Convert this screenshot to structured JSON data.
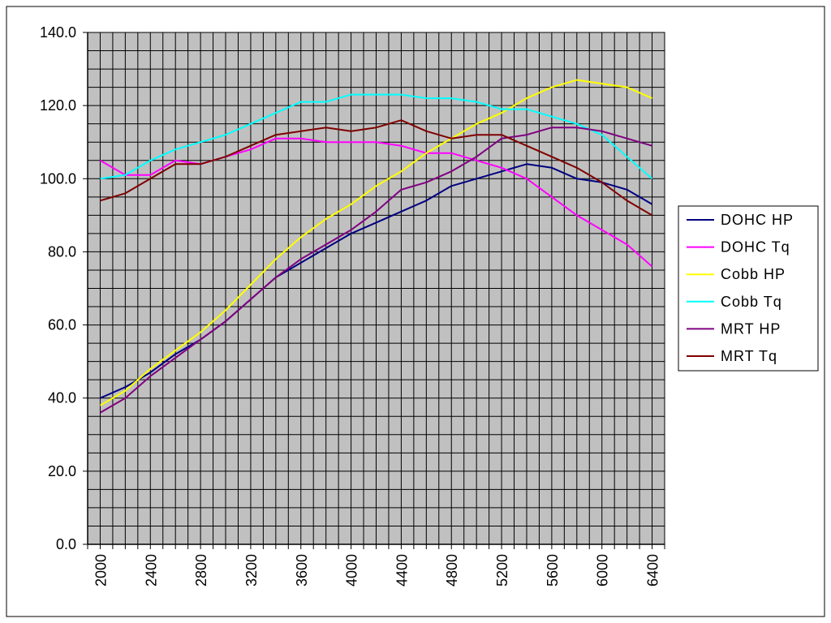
{
  "chart_data": {
    "type": "line",
    "title": "",
    "xlabel": "",
    "ylabel": "",
    "xlim": [
      1900,
      6500
    ],
    "ylim": [
      0,
      140
    ],
    "grid": true,
    "legend_position": "right",
    "plot_background": "#c0c0c0",
    "y_ticks": [
      "0.0",
      "20.0",
      "40.0",
      "60.0",
      "80.0",
      "100.0",
      "120.0",
      "140.0"
    ],
    "x_ticks": [
      "2000",
      "2400",
      "2800",
      "3200",
      "3600",
      "4000",
      "4400",
      "4800",
      "5200",
      "5600",
      "6000",
      "6400"
    ],
    "x": [
      2000,
      2200,
      2400,
      2600,
      2800,
      3000,
      3200,
      3400,
      3600,
      3800,
      4000,
      4200,
      4400,
      4600,
      4800,
      5000,
      5200,
      5400,
      5600,
      5800,
      6000,
      6200,
      6400
    ],
    "series": [
      {
        "name": "DOHC HP",
        "color": "#000080",
        "values": [
          40,
          43,
          47,
          52,
          56,
          61,
          67,
          73,
          77,
          81,
          85,
          88,
          91,
          94,
          98,
          100,
          102,
          104,
          103,
          100,
          99,
          97,
          93
        ]
      },
      {
        "name": "DOHC Tq",
        "color": "#ff00ff",
        "values": [
          105,
          101,
          101,
          105,
          104,
          106,
          108,
          111,
          111,
          110,
          110,
          110,
          109,
          107,
          107,
          105,
          103,
          100,
          95,
          90,
          86,
          82,
          76
        ]
      },
      {
        "name": "Cobb HP",
        "color": "#ffff00",
        "values": [
          38,
          42,
          48,
          53,
          58,
          64,
          71,
          78,
          84,
          89,
          93,
          98,
          102,
          107,
          111,
          115,
          118,
          122,
          125,
          127,
          126,
          125,
          122
        ]
      },
      {
        "name": "Cobb Tq",
        "color": "#00ffff",
        "values": [
          100,
          101,
          105,
          108,
          110,
          112,
          115,
          118,
          121,
          121,
          123,
          123,
          123,
          122,
          122,
          121,
          119,
          119,
          117,
          115,
          112,
          106,
          100
        ]
      },
      {
        "name": "MRT HP",
        "color": "#800080",
        "values": [
          36,
          40,
          46,
          51,
          56,
          61,
          67,
          73,
          78,
          82,
          86,
          91,
          97,
          99,
          102,
          106,
          111,
          112,
          114,
          114,
          113,
          111,
          109
        ]
      },
      {
        "name": "MRT Tq",
        "color": "#800000",
        "values": [
          94,
          96,
          100,
          104,
          104,
          106,
          109,
          112,
          113,
          114,
          113,
          114,
          116,
          113,
          111,
          112,
          112,
          109,
          106,
          103,
          99,
          94,
          90
        ]
      }
    ]
  }
}
